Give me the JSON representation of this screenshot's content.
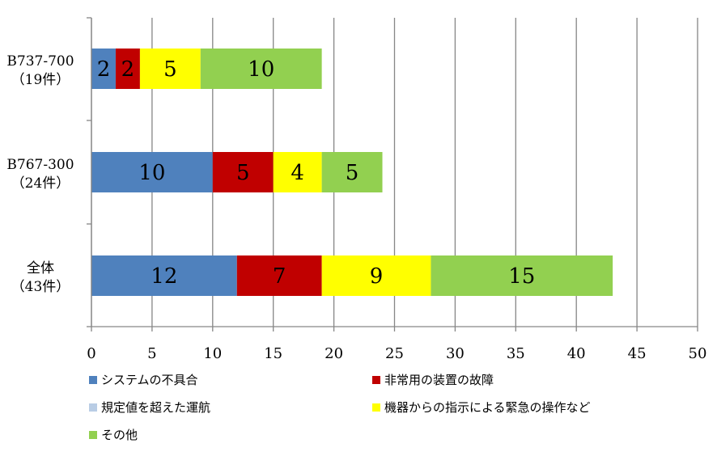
{
  "chart_data": {
    "type": "bar",
    "orientation": "horizontal",
    "stacked": true,
    "categories": [
      [
        "B737-700",
        "（19件）"
      ],
      [
        "B767-300",
        "（24件）"
      ],
      [
        "全体",
        "（43件）"
      ]
    ],
    "series": [
      {
        "name": "システムの不具合",
        "color": "#4F81BD",
        "values": [
          2,
          10,
          12
        ]
      },
      {
        "name": "非常用の装置の故障",
        "color": "#C00000",
        "values": [
          2,
          5,
          7
        ]
      },
      {
        "name": "規定値を超えた運航",
        "color": "#B9CDE5",
        "values": [
          0,
          0,
          0
        ]
      },
      {
        "name": "機器からの指示による緊急の操作など",
        "color": "#FFFF00",
        "values": [
          5,
          4,
          9
        ]
      },
      {
        "name": "その他",
        "color": "#92D050",
        "values": [
          10,
          5,
          15
        ]
      }
    ],
    "xlim": [
      0,
      50
    ],
    "xticks": [
      "0",
      "5",
      "10",
      "15",
      "20",
      "25",
      "30",
      "35",
      "40",
      "45",
      "50"
    ],
    "grid": true,
    "legend_position": "bottom"
  }
}
